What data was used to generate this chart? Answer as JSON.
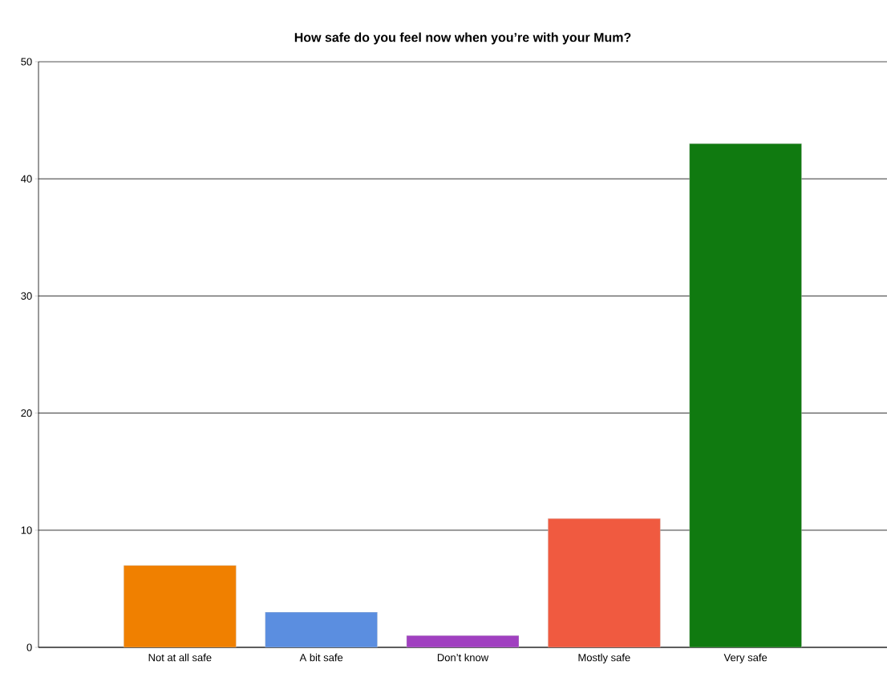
{
  "chart_data": {
    "type": "bar",
    "title": "How safe do you feel now when you’re with your Mum?",
    "categories": [
      "Not at all safe",
      "A bit safe",
      "Don’t know",
      "Mostly safe",
      "Very safe"
    ],
    "values": [
      7,
      3,
      1,
      11,
      43
    ],
    "colors": [
      "#f08000",
      "#5b8ee0",
      "#a040c0",
      "#f05a40",
      "#107a10"
    ],
    "ylim": [
      0,
      50
    ],
    "yticks": [
      0,
      10,
      20,
      30,
      40,
      50
    ],
    "grid": "y"
  }
}
